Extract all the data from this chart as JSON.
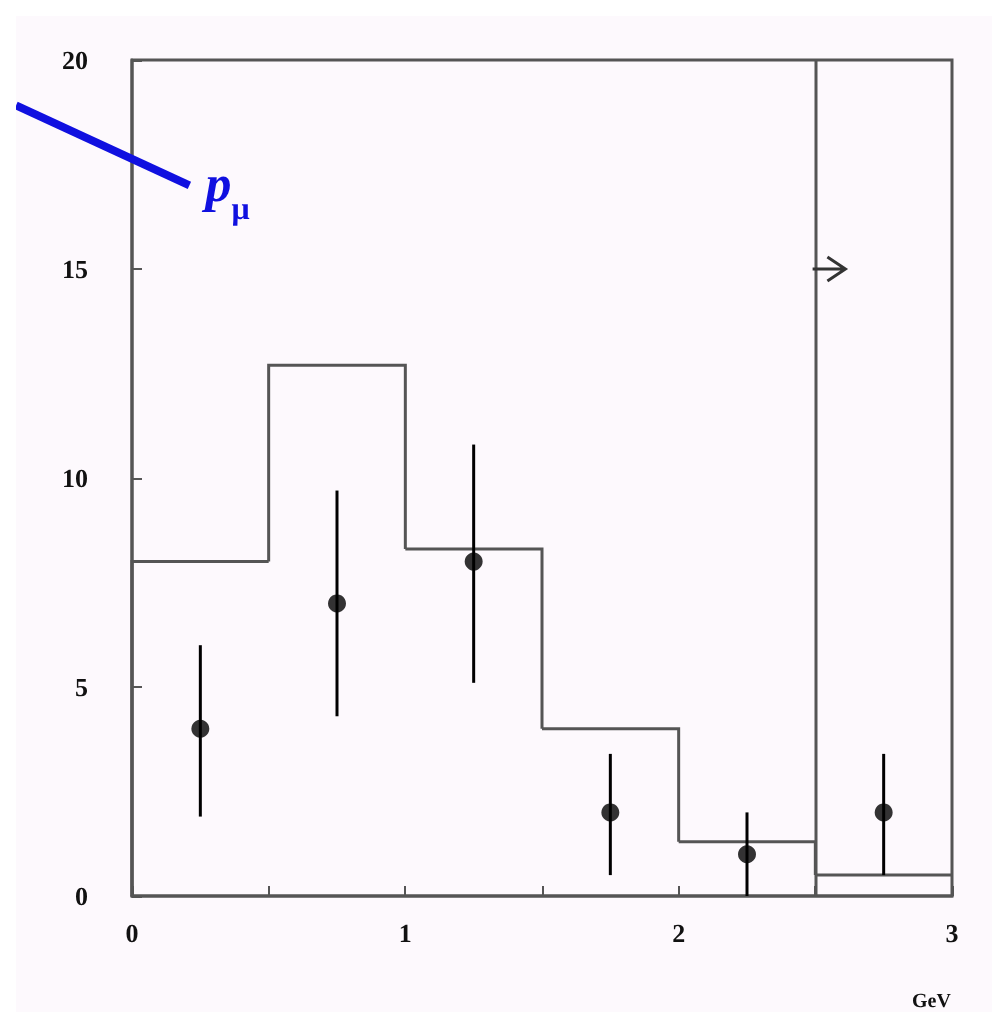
{
  "chart_data": {
    "type": "histogram",
    "xlabel": "GeV",
    "series": [
      {
        "type": "histogram",
        "color": "#555555",
        "bins": [
          0,
          0.5,
          1,
          1.5,
          2,
          2.5,
          3
        ],
        "values": [
          8.0,
          12.7,
          8.3,
          4.0,
          1.3,
          0.5
        ]
      },
      {
        "type": "scatter",
        "color": "#000000",
        "x": [
          0.25,
          0.75,
          1.25,
          1.75,
          2.25,
          2.75
        ],
        "values": [
          4,
          7,
          8,
          2,
          1,
          2
        ],
        "errors": [
          [
            1.9,
            6.0
          ],
          [
            4.3,
            9.7
          ],
          [
            5.1,
            10.8
          ],
          [
            0.5,
            3.4
          ],
          [
            0,
            2.0
          ],
          [
            0.5,
            3.4
          ]
        ]
      }
    ],
    "annotations": [
      "p$_{μ}$"
    ],
    "ref_lines": [
      {
        "axis": "x",
        "value": 2.5,
        "color": "#555555"
      }
    ],
    "xlim": [
      0,
      3
    ],
    "xticks": [
      0,
      {
        "value": 0.5,
        "label": null
      },
      1,
      {
        "value": 1.5,
        "label": null
      },
      2,
      {
        "value": 2.5,
        "label": null
      },
      3
    ],
    "ylim": [
      0,
      20
    ],
    "yticks": [
      0,
      5,
      10,
      15,
      20
    ],
    "grid": false,
    "marker": "circle"
  }
}
